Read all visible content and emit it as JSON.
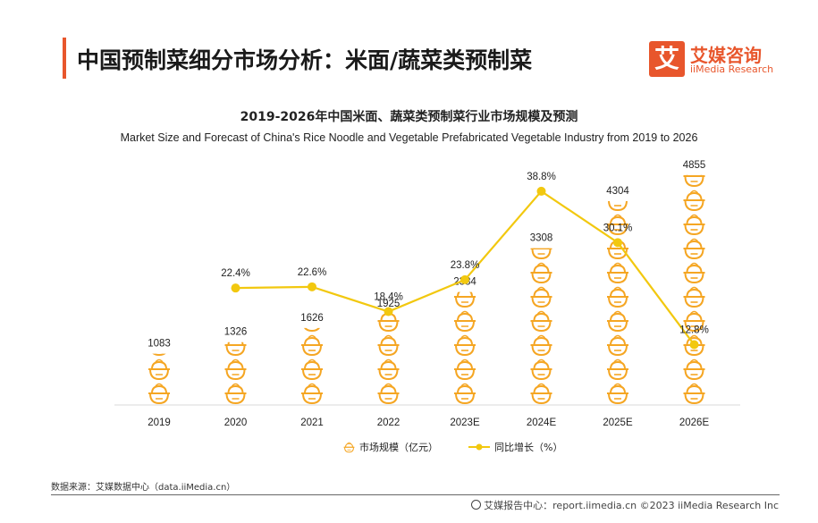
{
  "header": {
    "title": "中国预制菜细分市场分析：米面/蔬菜类预制菜"
  },
  "logo": {
    "mark": "艾",
    "name_cn": "艾媒咨询",
    "name_en": "iiMedia Research"
  },
  "chart_data": {
    "type": "bar+line",
    "title": "2019-2026年中国米面、蔬菜类预制菜行业市场规模及预测",
    "subtitle": "Market Size and Forecast of China's Rice Noodle and Vegetable Prefabricated Vegetable Industry from 2019 to 2026",
    "categories": [
      "2019",
      "2020",
      "2021",
      "2022",
      "2023E",
      "2024E",
      "2025E",
      "2026E"
    ],
    "series": [
      {
        "name": "市场规模（亿元）",
        "type": "pictorial-bar",
        "values": [
          1083,
          1326,
          1626,
          1925,
          2384,
          3308,
          4304,
          4855
        ],
        "color": "#f5a623"
      },
      {
        "name": "同比增长（%）",
        "type": "line",
        "values": [
          null,
          22.4,
          22.6,
          18.4,
          23.8,
          38.8,
          30.1,
          12.8
        ],
        "labels": [
          "",
          "22.4%",
          "22.6%",
          "18.4%",
          "23.8%",
          "38.8%",
          "30.1%",
          "12.8%"
        ],
        "color": "#f2c80f"
      }
    ],
    "legend_position": "bottom",
    "grid": false
  },
  "source_text": "数据来源：艾媒数据中心（data.iiMedia.cn）",
  "footer_text": "艾媒报告中心：report.iimedia.cn  ©2023  iiMedia Research  Inc"
}
